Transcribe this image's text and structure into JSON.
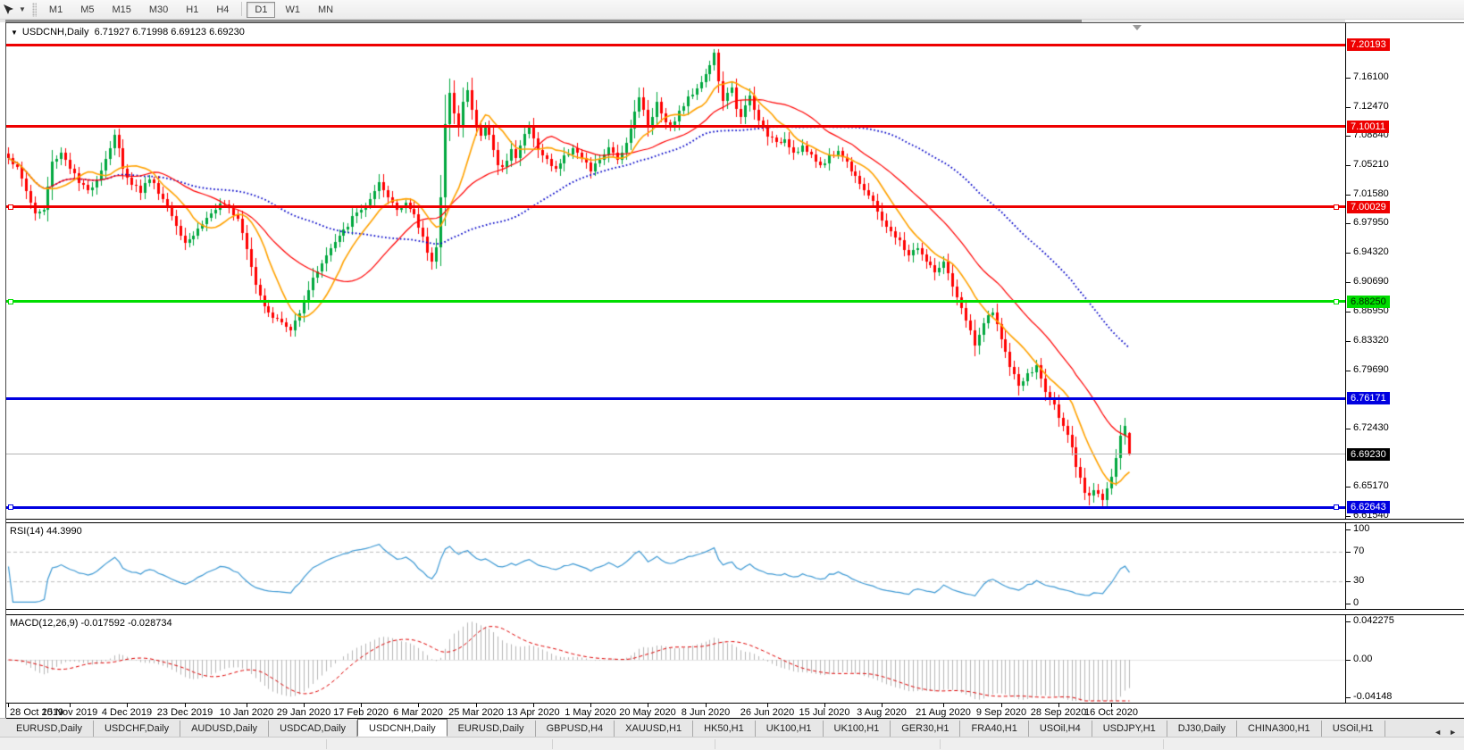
{
  "toolbar": {
    "cursor_tool": "cursor",
    "dropdown_caret": "▼",
    "timeframes": [
      "M1",
      "M5",
      "M15",
      "M30",
      "H1",
      "H4",
      "D1",
      "W1",
      "MN"
    ],
    "active_timeframe": "D1"
  },
  "chart": {
    "symbol_label": "USDCNH,Daily",
    "ohlc_text": "6.71927 6.71998 6.69123 6.69230",
    "open": "6.71927",
    "high": "6.71998",
    "low": "6.69123",
    "close": "6.69230"
  },
  "price_axis": {
    "ticks": [
      {
        "label": "7.16100",
        "price": 7.161
      },
      {
        "label": "7.12470",
        "price": 7.1247
      },
      {
        "label": "7.08840",
        "price": 7.0884
      },
      {
        "label": "7.05210",
        "price": 7.0521
      },
      {
        "label": "7.01580",
        "price": 7.0158
      },
      {
        "label": "6.97950",
        "price": 6.9795
      },
      {
        "label": "6.94320",
        "price": 6.9432
      },
      {
        "label": "6.90690",
        "price": 6.9069
      },
      {
        "label": "6.86950",
        "price": 6.8695
      },
      {
        "label": "6.83320",
        "price": 6.8332
      },
      {
        "label": "6.79690",
        "price": 6.7969
      },
      {
        "label": "6.72430",
        "price": 6.7243
      },
      {
        "label": "6.65170",
        "price": 6.6517
      },
      {
        "label": "6.61540",
        "price": 6.6154
      }
    ]
  },
  "indicators": {
    "rsi": {
      "label": "RSI(14) 44.3990",
      "period": 14,
      "current": 44.399,
      "scale_labels": [
        {
          "text": "100",
          "v": 100
        },
        {
          "text": "70",
          "v": 70
        },
        {
          "text": "30",
          "v": 30
        },
        {
          "text": "0",
          "v": 0
        }
      ],
      "levels": [
        70,
        30
      ],
      "line_color": "#3d99d4"
    },
    "macd": {
      "label": "MACD(12,26,9) -0.017592 -0.028734",
      "fast": 12,
      "slow": 26,
      "signal": 9,
      "macd_value": -0.017592,
      "signal_value": -0.028734,
      "scale_labels": [
        {
          "text": "0.042275",
          "v": 0.042275
        },
        {
          "text": "0.00",
          "v": 0
        },
        {
          "text": "-0.04148",
          "v": -0.04148
        }
      ],
      "bar_color": "#b6b6b6",
      "signal_color": "#e00000"
    }
  },
  "date_axis": {
    "labels": [
      {
        "text": "28 Oct 2019",
        "day": 0
      },
      {
        "text": "15 Nov 2019",
        "day": 14
      },
      {
        "text": "4 Dec 2019",
        "day": 27
      },
      {
        "text": "23 Dec 2019",
        "day": 40
      },
      {
        "text": "10 Jan 2020",
        "day": 54
      },
      {
        "text": "29 Jan 2020",
        "day": 67
      },
      {
        "text": "17 Feb 2020",
        "day": 80
      },
      {
        "text": "6 Mar 2020",
        "day": 93
      },
      {
        "text": "25 Mar 2020",
        "day": 106
      },
      {
        "text": "13 Apr 2020",
        "day": 119
      },
      {
        "text": "1 May 2020",
        "day": 132
      },
      {
        "text": "20 May 2020",
        "day": 145
      },
      {
        "text": "8 Jun 2020",
        "day": 158
      },
      {
        "text": "26 Jun 2020",
        "day": 172
      },
      {
        "text": "15 Jul 2020",
        "day": 185
      },
      {
        "text": "3 Aug 2020",
        "day": 198
      },
      {
        "text": "21 Aug 2020",
        "day": 212
      },
      {
        "text": "9 Sep 2020",
        "day": 225
      },
      {
        "text": "28 Sep 2020",
        "day": 238
      },
      {
        "text": "16 Oct 2020",
        "day": 250
      }
    ]
  },
  "tabs": {
    "items": [
      "EURUSD,Daily",
      "USDCHF,Daily",
      "AUDUSD,Daily",
      "USDCAD,Daily",
      "USDCNH,Daily",
      "EURUSD,Daily",
      "GBPUSD,H4",
      "XAUUSD,H1",
      "HK50,H1",
      "UK100,H1",
      "UK100,H1",
      "GER30,H1",
      "FRA40,H1",
      "USOil,H4",
      "USDJPY,H1",
      "DJ30,Daily",
      "CHINA300,H1",
      "USOil,H1"
    ],
    "active_index": 4,
    "scroll_left": "◄",
    "scroll_right": "►"
  },
  "chart_data": {
    "type": "candlestick",
    "symbol": "USDCNH",
    "timeframe": "Daily",
    "visible_days": 255,
    "ylim": [
      6.615,
      7.228
    ],
    "last_candle": {
      "open": 6.71927,
      "high": 6.71998,
      "low": 6.69123,
      "close": 6.6923
    },
    "bull_color": "#00a83e",
    "bear_color": "#ff0000",
    "close_path_anchors": [
      [
        0,
        7.063
      ],
      [
        2,
        7.048
      ],
      [
        4,
        7.02
      ],
      [
        6,
        6.992
      ],
      [
        8,
        6.996
      ],
      [
        10,
        7.055
      ],
      [
        12,
        7.068
      ],
      [
        14,
        7.05
      ],
      [
        16,
        7.03
      ],
      [
        18,
        7.02
      ],
      [
        20,
        7.035
      ],
      [
        22,
        7.06
      ],
      [
        24,
        7.09
      ],
      [
        25,
        7.072
      ],
      [
        26,
        7.046
      ],
      [
        28,
        7.03
      ],
      [
        30,
        7.02
      ],
      [
        32,
        7.036
      ],
      [
        34,
        7.02
      ],
      [
        36,
        7.0
      ],
      [
        38,
        6.978
      ],
      [
        40,
        6.958
      ],
      [
        42,
        6.966
      ],
      [
        44,
        6.98
      ],
      [
        46,
        6.992
      ],
      [
        48,
        7.002
      ],
      [
        50,
        6.998
      ],
      [
        52,
        6.988
      ],
      [
        54,
        6.95
      ],
      [
        56,
        6.905
      ],
      [
        58,
        6.878
      ],
      [
        60,
        6.864
      ],
      [
        62,
        6.856
      ],
      [
        64,
        6.846
      ],
      [
        66,
        6.87
      ],
      [
        68,
        6.898
      ],
      [
        70,
        6.922
      ],
      [
        72,
        6.94
      ],
      [
        74,
        6.956
      ],
      [
        76,
        6.97
      ],
      [
        78,
        6.986
      ],
      [
        80,
        6.998
      ],
      [
        82,
        7.008
      ],
      [
        84,
        7.028
      ],
      [
        86,
        7.012
      ],
      [
        88,
        6.998
      ],
      [
        90,
        7.006
      ],
      [
        92,
        6.988
      ],
      [
        94,
        6.962
      ],
      [
        95,
        6.945
      ],
      [
        96,
        6.934
      ],
      [
        97,
        6.95
      ],
      [
        98,
        7.01
      ],
      [
        99,
        7.1
      ],
      [
        100,
        7.145
      ],
      [
        101,
        7.12
      ],
      [
        102,
        7.1
      ],
      [
        103,
        7.13
      ],
      [
        104,
        7.145
      ],
      [
        105,
        7.12
      ],
      [
        106,
        7.1
      ],
      [
        107,
        7.088
      ],
      [
        108,
        7.1
      ],
      [
        109,
        7.09
      ],
      [
        110,
        7.07
      ],
      [
        111,
        7.055
      ],
      [
        112,
        7.048
      ],
      [
        113,
        7.06
      ],
      [
        114,
        7.075
      ],
      [
        115,
        7.062
      ],
      [
        116,
        7.075
      ],
      [
        117,
        7.09
      ],
      [
        118,
        7.1
      ],
      [
        119,
        7.088
      ],
      [
        120,
        7.07
      ],
      [
        122,
        7.058
      ],
      [
        124,
        7.048
      ],
      [
        126,
        7.062
      ],
      [
        128,
        7.075
      ],
      [
        130,
        7.06
      ],
      [
        132,
        7.045
      ],
      [
        134,
        7.06
      ],
      [
        136,
        7.072
      ],
      [
        138,
        7.06
      ],
      [
        140,
        7.08
      ],
      [
        141,
        7.1
      ],
      [
        142,
        7.12
      ],
      [
        143,
        7.135
      ],
      [
        144,
        7.12
      ],
      [
        145,
        7.1
      ],
      [
        146,
        7.115
      ],
      [
        147,
        7.13
      ],
      [
        148,
        7.118
      ],
      [
        150,
        7.1
      ],
      [
        152,
        7.118
      ],
      [
        154,
        7.135
      ],
      [
        156,
        7.15
      ],
      [
        158,
        7.165
      ],
      [
        159,
        7.178
      ],
      [
        160,
        7.19
      ],
      [
        161,
        7.158
      ],
      [
        162,
        7.13
      ],
      [
        163,
        7.14
      ],
      [
        164,
        7.15
      ],
      [
        165,
        7.125
      ],
      [
        166,
        7.11
      ],
      [
        167,
        7.125
      ],
      [
        168,
        7.138
      ],
      [
        169,
        7.12
      ],
      [
        170,
        7.108
      ],
      [
        172,
        7.09
      ],
      [
        174,
        7.078
      ],
      [
        176,
        7.086
      ],
      [
        178,
        7.068
      ],
      [
        180,
        7.076
      ],
      [
        182,
        7.062
      ],
      [
        184,
        7.052
      ],
      [
        186,
        7.062
      ],
      [
        188,
        7.07
      ],
      [
        190,
        7.055
      ],
      [
        192,
        7.04
      ],
      [
        194,
        7.022
      ],
      [
        196,
        7.005
      ],
      [
        198,
        6.985
      ],
      [
        200,
        6.968
      ],
      [
        202,
        6.956
      ],
      [
        204,
        6.94
      ],
      [
        206,
        6.95
      ],
      [
        208,
        6.932
      ],
      [
        210,
        6.92
      ],
      [
        212,
        6.93
      ],
      [
        214,
        6.9
      ],
      [
        216,
        6.872
      ],
      [
        218,
        6.848
      ],
      [
        219,
        6.825
      ],
      [
        221,
        6.856
      ],
      [
        223,
        6.868
      ],
      [
        225,
        6.838
      ],
      [
        227,
        6.8
      ],
      [
        229,
        6.778
      ],
      [
        231,
        6.79
      ],
      [
        233,
        6.802
      ],
      [
        235,
        6.77
      ],
      [
        237,
        6.752
      ],
      [
        239,
        6.73
      ],
      [
        240,
        6.714
      ],
      [
        241,
        6.698
      ],
      [
        242,
        6.676
      ],
      [
        243,
        6.66
      ],
      [
        244,
        6.645
      ],
      [
        245,
        6.638
      ],
      [
        246,
        6.65
      ],
      [
        247,
        6.644
      ],
      [
        248,
        6.638
      ],
      [
        249,
        6.65
      ],
      [
        250,
        6.664
      ],
      [
        251,
        6.688
      ],
      [
        252,
        6.712
      ],
      [
        253,
        6.728
      ],
      [
        254,
        6.6923
      ]
    ],
    "moving_averages": [
      {
        "period": 10,
        "color": "#ffa200",
        "style": "solid"
      },
      {
        "period": 25,
        "color": "#ff0000",
        "style": "solid"
      },
      {
        "period": 60,
        "color": "#0000c8",
        "style": "dotted"
      }
    ],
    "horizontal_lines": [
      {
        "label": "7.20193",
        "price": 7.20193,
        "color": "#ee0000",
        "width": 3,
        "chip_bg": "#ee0000",
        "chip_fg": "#ffffff",
        "handles": false,
        "kind": "resistance"
      },
      {
        "label": "7.10011",
        "price": 7.10011,
        "color": "#ee0000",
        "width": 3,
        "chip_bg": "#ee0000",
        "chip_fg": "#ffffff",
        "handles": false,
        "kind": "resistance"
      },
      {
        "label": "7.00029",
        "price": 7.00029,
        "color": "#ee0000",
        "width": 3,
        "chip_bg": "#ee0000",
        "chip_fg": "#ffffff",
        "handles": true,
        "kind": "resistance"
      },
      {
        "label": "6.88250",
        "price": 6.8825,
        "color": "#00dd00",
        "width": 3,
        "chip_bg": "#00dd00",
        "chip_fg": "#002200",
        "handles": true,
        "kind": "support"
      },
      {
        "label": "6.76171",
        "price": 6.76171,
        "color": "#0000e0",
        "width": 3,
        "chip_bg": "#0000e0",
        "chip_fg": "#ffffff",
        "handles": false,
        "kind": "support"
      },
      {
        "label": "6.69230",
        "price": 6.6923,
        "color": "#b4b4b4",
        "width": 1,
        "chip_bg": "#000000",
        "chip_fg": "#ffffff",
        "handles": false,
        "kind": "current-price"
      },
      {
        "label": "6.62643",
        "price": 6.62643,
        "color": "#0000e0",
        "width": 3,
        "chip_bg": "#0000e0",
        "chip_fg": "#ffffff",
        "handles": true,
        "kind": "support"
      }
    ]
  }
}
